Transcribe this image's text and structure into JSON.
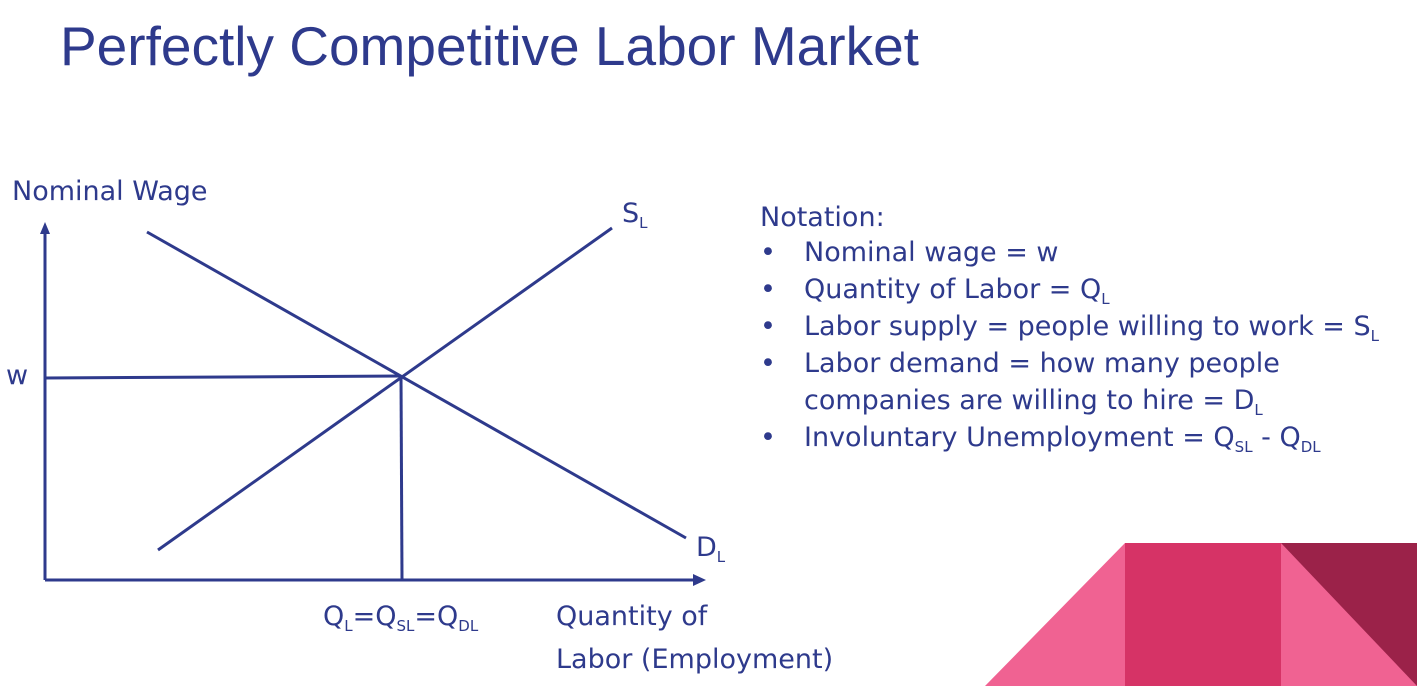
{
  "title": "Perfectly Competitive Labor Market",
  "graph": {
    "y_axis_label": "Nominal Wage",
    "x_axis_label_line1": "Quantity of",
    "x_axis_label_line2": "Labor (Employment)",
    "wage_label": "w",
    "supply_label": "S",
    "supply_sub": "L",
    "demand_label": "D",
    "demand_sub": "L",
    "eq_q": "Q",
    "eq_q_sub": "L",
    "eq_eq1": "=",
    "eq_qs": "Q",
    "eq_qs_sub": "SL",
    "eq_eq2": "=",
    "eq_qd": "Q",
    "eq_qd_sub": "DL"
  },
  "notation": {
    "heading": "Notation:",
    "bullet": "•",
    "items": [
      {
        "text": "Nominal wage = w"
      },
      {
        "text": "Quantity of Labor = Q",
        "sub": "L"
      },
      {
        "text": "Labor supply = people willing to work = S",
        "sub": "L"
      },
      {
        "text": "Labor demand = how many people",
        "text2": "companies are willing to hire = D",
        "sub2": "L"
      },
      {
        "text": "Involuntary Unemployment = Q",
        "sub": "SL",
        "mid": " - Q",
        "sub_b": "DL"
      }
    ]
  },
  "colors": {
    "text": "#2e3a8c",
    "pink_light": "#f06292",
    "pink_mid": "#d63366",
    "maroon": "#9b2249"
  }
}
